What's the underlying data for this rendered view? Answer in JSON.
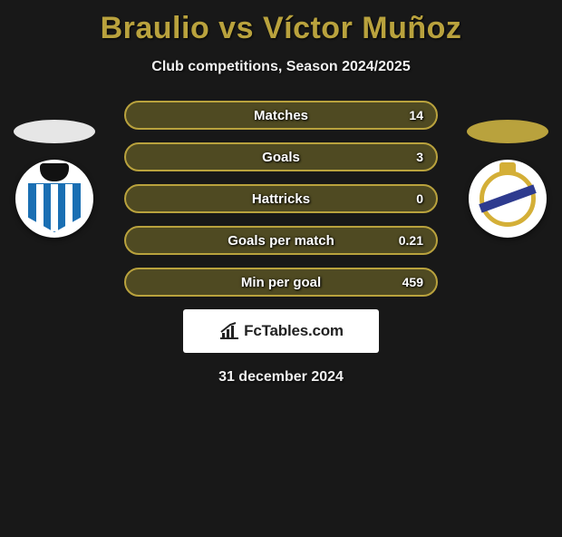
{
  "title": {
    "player1": "Braulio",
    "vs": "vs",
    "player2": "Víctor Muñoz",
    "color": "#b9a23d"
  },
  "subtitle": "Club competitions, Season 2024/2025",
  "colors": {
    "bar_bg": "#4f4a22",
    "bar_border": "#b9a23d",
    "ellipse_left": "#e6e6e6",
    "ellipse_right": "#b9a23d"
  },
  "stats": [
    {
      "label": "Matches",
      "value_right": "14"
    },
    {
      "label": "Goals",
      "value_right": "3"
    },
    {
      "label": "Hattricks",
      "value_right": "0"
    },
    {
      "label": "Goals per match",
      "value_right": "0.21"
    },
    {
      "label": "Min per goal",
      "value_right": "459"
    }
  ],
  "brand": {
    "text": "FcTables.com"
  },
  "date": "31 december 2024"
}
